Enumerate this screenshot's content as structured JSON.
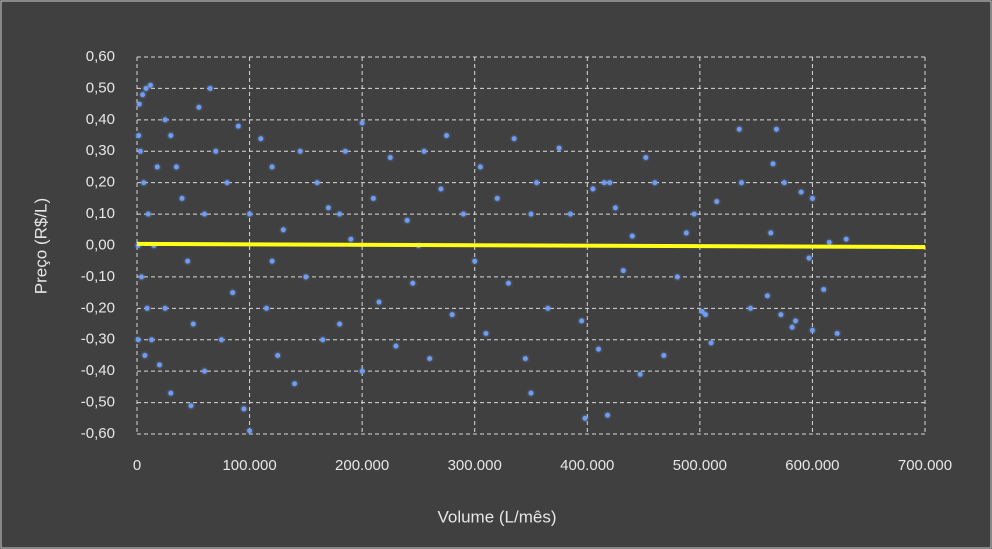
{
  "chart_data": {
    "type": "scatter",
    "xlabel": "Volume (L/mês)",
    "ylabel": "Preço (R$/L)",
    "xlim": [
      0,
      700000
    ],
    "ylim": [
      -0.6,
      0.6
    ],
    "xticks": [
      0,
      {
        "value": 100000,
        "label": "100.000"
      },
      {
        "value": 200000,
        "label": "200.000"
      },
      {
        "value": 300000,
        "label": "300.000"
      },
      {
        "value": 400000,
        "label": "400.000"
      },
      {
        "value": 500000,
        "label": "500.000"
      },
      {
        "value": 600000,
        "label": "600.000"
      },
      {
        "value": 700000,
        "label": "700.000"
      }
    ],
    "yticks": [
      {
        "value": 0.6,
        "label": "0,60"
      },
      {
        "value": 0.5,
        "label": "0,50"
      },
      {
        "value": 0.4,
        "label": "0,40"
      },
      {
        "value": 0.3,
        "label": "0,30"
      },
      {
        "value": 0.2,
        "label": "0,20"
      },
      {
        "value": 0.1,
        "label": "0,10"
      },
      {
        "value": 0,
        "label": "0,00"
      },
      {
        "value": -0.1,
        "label": "-0,10"
      },
      {
        "value": -0.2,
        "label": "-0,20"
      },
      {
        "value": -0.3,
        "label": "-0,30"
      },
      {
        "value": -0.4,
        "label": "-0,40"
      },
      {
        "value": -0.5,
        "label": "-0,50"
      },
      {
        "value": -0.6,
        "label": "-0,60"
      }
    ],
    "grid": true,
    "series": [
      {
        "color": "#6f9cf2",
        "x": [
          2000,
          5000,
          8000,
          12000,
          3000,
          6000,
          10000,
          15000,
          4000,
          9000,
          13000,
          7000,
          20000,
          25000,
          30000,
          35000,
          40000,
          45000,
          50000,
          30000,
          48000,
          55000,
          65000,
          60000,
          70000,
          75000,
          80000,
          85000,
          90000,
          95000,
          100000,
          100000,
          110000,
          115000,
          120000,
          125000,
          130000,
          140000,
          145000,
          150000,
          160000,
          165000,
          170000,
          180000,
          185000,
          190000,
          200000,
          200000,
          210000,
          215000,
          225000,
          230000,
          240000,
          245000,
          255000,
          260000,
          270000,
          275000,
          280000,
          290000,
          300000,
          305000,
          310000,
          320000,
          330000,
          335000,
          345000,
          350000,
          355000,
          365000,
          375000,
          385000,
          395000,
          398000,
          405000,
          410000,
          418000,
          425000,
          432000,
          440000,
          447000,
          452000,
          460000,
          468000,
          480000,
          488000,
          495000,
          505000,
          510000,
          515000,
          535000,
          537000,
          545000,
          560000,
          563000,
          568000,
          572000,
          575000,
          582000,
          590000,
          597000,
          600000,
          610000,
          615000,
          622000,
          630000,
          565000,
          585000,
          502000,
          420000,
          415000,
          350000,
          250000,
          180000,
          120000,
          60000,
          25000,
          18000,
          1000,
          1000,
          1500,
          600000
        ],
        "values": [
          0.45,
          0.48,
          0.5,
          0.51,
          0.3,
          0.2,
          0.1,
          0,
          -0.1,
          -0.2,
          -0.3,
          -0.35,
          -0.38,
          0.4,
          0.35,
          0.25,
          0.15,
          -0.05,
          -0.25,
          -0.47,
          -0.51,
          0.44,
          0.5,
          -0.4,
          0.3,
          -0.3,
          0.2,
          -0.15,
          0.38,
          -0.52,
          -0.59,
          0.1,
          0.34,
          -0.2,
          0.25,
          -0.35,
          0.05,
          -0.44,
          0.3,
          -0.1,
          0.2,
          -0.3,
          0.12,
          -0.25,
          0.3,
          0.02,
          0.39,
          -0.4,
          0.15,
          -0.18,
          0.28,
          -0.32,
          0.08,
          -0.12,
          0.3,
          -0.36,
          0.18,
          0.35,
          -0.22,
          0.1,
          -0.05,
          0.25,
          -0.28,
          0.15,
          -0.12,
          0.34,
          -0.36,
          -0.47,
          0.2,
          -0.2,
          0.31,
          0.1,
          -0.24,
          -0.55,
          0.18,
          -0.33,
          -0.54,
          0.12,
          -0.08,
          0.03,
          -0.41,
          0.28,
          0.2,
          -0.35,
          -0.1,
          0.04,
          0.1,
          -0.22,
          -0.31,
          0.14,
          0.37,
          0.2,
          -0.2,
          -0.16,
          0.04,
          0.37,
          -0.22,
          0.2,
          -0.26,
          0.17,
          -0.04,
          0.15,
          -0.14,
          0.01,
          -0.28,
          0.02,
          0.26,
          -0.24,
          -0.21,
          0.2,
          0.2,
          0.1,
          0,
          0.1,
          -0.05,
          0.1,
          -0.2,
          0.25,
          0,
          -0.3,
          0.35,
          -0.27
        ]
      }
    ],
    "trendline": {
      "color": "#ffff1a",
      "x": [
        0,
        700000
      ],
      "values": [
        0.005,
        -0.005
      ]
    }
  }
}
